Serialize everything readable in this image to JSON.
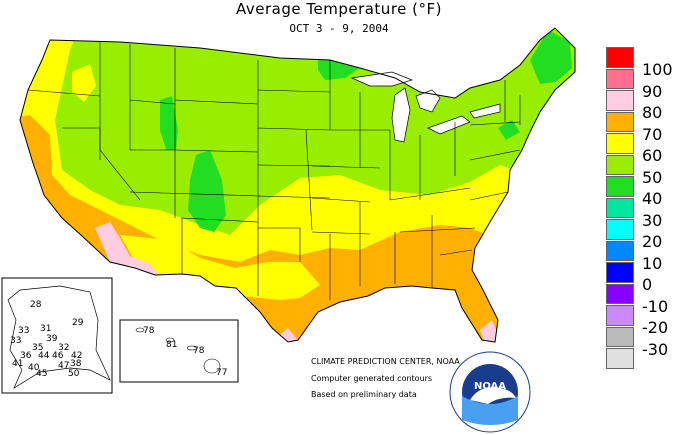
{
  "header": {
    "title": "Average Temperature (°F)",
    "subtitle": "OCT 3 - 9, 2004"
  },
  "legend": {
    "title": "",
    "items": [
      {
        "label": "100",
        "color": "#ff0000"
      },
      {
        "label": "90",
        "color": "#ff6e8c"
      },
      {
        "label": "80",
        "color": "#ffcce0"
      },
      {
        "label": "70",
        "color": "#ffb000"
      },
      {
        "label": "60",
        "color": "#ffff00"
      },
      {
        "label": "50",
        "color": "#99ee00"
      },
      {
        "label": "40",
        "color": "#22dd22"
      },
      {
        "label": "30",
        "color": "#00e8a0"
      },
      {
        "label": "20",
        "color": "#00ffff"
      },
      {
        "label": "10",
        "color": "#0088ff"
      },
      {
        "label": "0",
        "color": "#0000ff"
      },
      {
        "label": "-10",
        "color": "#8800ff"
      },
      {
        "label": "-20",
        "color": "#cc88ff"
      },
      {
        "label": "-30",
        "color": "#bbbbbb"
      },
      {
        "label": "",
        "color": "#e0e0e0"
      }
    ]
  },
  "alaska_values": [
    "28",
    "29",
    "33",
    "31",
    "33",
    "39",
    "32",
    "35",
    "42",
    "36",
    "44",
    "46",
    "38",
    "41",
    "47",
    "40",
    "45",
    "50"
  ],
  "hawaii_values": [
    "78",
    "81",
    "78",
    "77"
  ],
  "credits": {
    "line1": "CLIMATE PREDICTION CENTER, NOAA",
    "line2": "Computer generated contours",
    "line3": "Based on preliminary data"
  },
  "logo": {
    "text": "NOAA",
    "ring_text": "NATIONAL OCEANIC AND ATMOSPHERIC ADMINISTRATION · U.S. DEPARTMENT OF COMMERCE"
  }
}
